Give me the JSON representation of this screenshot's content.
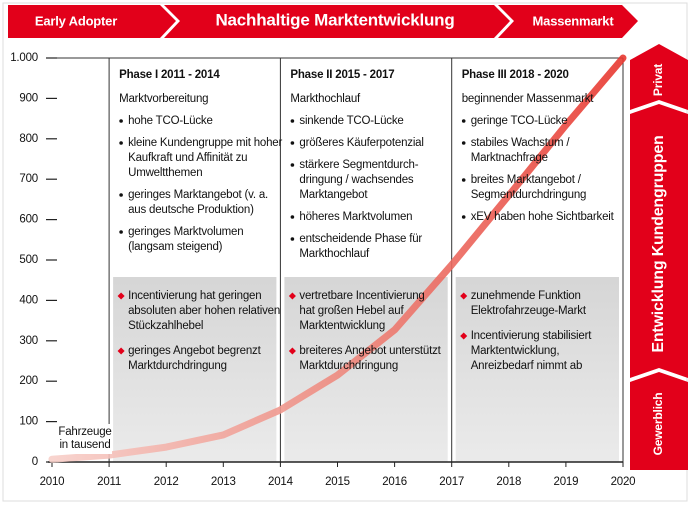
{
  "chart_data": {
    "type": "line",
    "header": {
      "left": "Early Adopter",
      "center": "Nachhaltige Marktentwicklung",
      "right": "Massenmarkt"
    },
    "side": {
      "top": "Privat",
      "center": "Entwicklung Kundengruppen",
      "bottom": "Gewerblich"
    },
    "y_label": [
      "Fahrzeuge",
      "in tausend"
    ],
    "x": [
      2010,
      2011,
      2012,
      2013,
      2014,
      2015,
      2016,
      2017,
      2018,
      2019,
      2020
    ],
    "series": [
      {
        "color": "#e8372f",
        "values": [
          7,
          17,
          37,
          67,
          129,
          215,
          327,
          488,
          660,
          834,
          1000
        ]
      }
    ],
    "xlim": [
      2010,
      2020
    ],
    "xticks": [
      2010,
      2011,
      2012,
      2013,
      2014,
      2015,
      2016,
      2017,
      2018,
      2019,
      2020
    ],
    "ylim": [
      0,
      1000
    ],
    "yticks": [
      0,
      100,
      200,
      300,
      400,
      500,
      600,
      700,
      800,
      900,
      {
        "value": 1000,
        "label": "1.000"
      }
    ],
    "phases": [
      {
        "title": "Phase I 2011 - 2014",
        "subtitle": "Marktvorbereitung",
        "bullets": [
          [
            "hohe TCO-Lücke"
          ],
          [
            "kleine Kundengruppe mit hoher",
            "Kaufkraft und Affinität zu",
            "Umweltthemen"
          ],
          [
            "geringes Marktangebot (v. a.",
            "aus deutsche Produktion)"
          ],
          [
            "geringes Marktvolumen",
            "(langsam steigend)"
          ]
        ],
        "highlights": [
          [
            "Incentivierung hat geringen",
            "absoluten aber hohen relativen",
            "Stückzahlhebel"
          ],
          [
            "geringes Angebot begrenzt",
            "Marktdurchdringung"
          ]
        ]
      },
      {
        "title": "Phase II 2015 - 2017",
        "subtitle": "Markthochlauf",
        "bullets": [
          [
            "sinkende TCO-Lücke"
          ],
          [
            "größeres Käuferpotenzial"
          ],
          [
            "stärkere Segmentdurch-",
            "dringung / wachsendes",
            "Marktangebot"
          ],
          [
            "höheres Marktvolumen"
          ],
          [
            "entscheidende Phase für",
            "Markthochlauf"
          ]
        ],
        "highlights": [
          [
            "vertretbare Incentivierung",
            "hat großen Hebel auf",
            "Marktentwicklung"
          ],
          [
            "breiteres Angebot unterstützt",
            "Marktdurchdringung"
          ]
        ]
      },
      {
        "title": "Phase III 2018 - 2020",
        "subtitle": "beginnender Massenmarkt",
        "bullets": [
          [
            "geringe TCO-Lücke"
          ],
          [
            "stabiles Wachstum /",
            "Marktnachfrage"
          ],
          [
            "breites Marktangebot /",
            "Segmentdurchdringung"
          ],
          [
            "xEV haben hohe Sichtbarkeit"
          ]
        ],
        "highlights": [
          [
            "zunehmende Funktion",
            "Elektrofahrzeuge-Markt"
          ],
          [
            "Incentivierung stabilisiert",
            "Marktentwicklung,",
            "Anreizbedarf nimmt ab"
          ]
        ]
      }
    ]
  }
}
